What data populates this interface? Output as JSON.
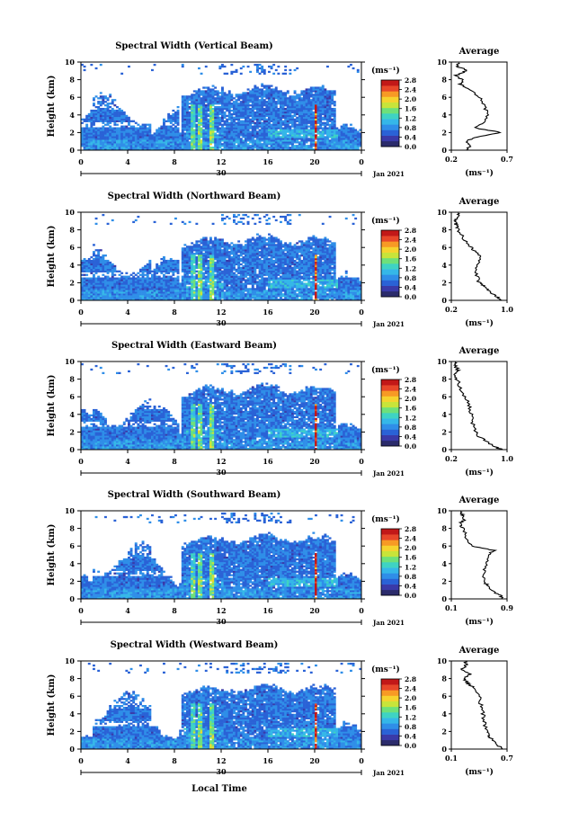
{
  "chart_data": [
    {
      "type": "heatmap",
      "title": "Spectral Width (Vertical Beam)",
      "ylabel": "Height (km)",
      "yticks": [
        "0",
        "2",
        "4",
        "6",
        "8",
        "10"
      ],
      "xticks": [
        "0",
        "4",
        "8",
        "12",
        "16",
        "20",
        "0"
      ],
      "ylim": [
        0,
        10
      ],
      "date_labels": {
        "day": "30",
        "month_year": "Jan 2021"
      },
      "colorbar": {
        "unit": "(ms⁻¹)",
        "ticks": [
          "0.0",
          "0.4",
          "0.8",
          "1.2",
          "1.6",
          "2.0",
          "2.4",
          "2.8"
        ],
        "range": [
          0,
          2.8
        ]
      },
      "profile": {
        "title": "Average",
        "unit": "(ms⁻¹)",
        "xticks": [
          "0.2",
          "0.7"
        ],
        "xlim": [
          0.2,
          0.7
        ],
        "heights": [
          0,
          0.5,
          1,
          1.5,
          2,
          2.5,
          3,
          4,
          5,
          6,
          7,
          7.5,
          8,
          8.5,
          9,
          9.5
        ],
        "values": [
          0.33,
          0.38,
          0.33,
          0.43,
          0.65,
          0.42,
          0.48,
          0.52,
          0.5,
          0.46,
          0.36,
          0.28,
          0.3,
          0.24,
          0.34,
          0.26
        ]
      }
    },
    {
      "type": "heatmap",
      "title": "Spectral Width (Northward Beam)",
      "ylabel": "Height (km)",
      "yticks": [
        "0",
        "2",
        "4",
        "6",
        "8",
        "10"
      ],
      "xticks": [
        "0",
        "4",
        "8",
        "12",
        "16",
        "20",
        "0"
      ],
      "ylim": [
        0,
        10
      ],
      "date_labels": {
        "day": "30",
        "month_year": "Jan 2021"
      },
      "colorbar": {
        "unit": "(ms⁻¹)",
        "ticks": [
          "0.0",
          "0.4",
          "0.8",
          "1.2",
          "1.6",
          "2.0",
          "2.4",
          "2.8"
        ],
        "range": [
          0,
          2.8
        ]
      },
      "profile": {
        "title": "Average",
        "unit": "(ms⁻¹)",
        "xticks": [
          "0.2",
          "1.0"
        ],
        "xlim": [
          0.2,
          1.0
        ],
        "heights": [
          0,
          0.5,
          1,
          1.5,
          2,
          3,
          4,
          5,
          5.5,
          6,
          7,
          8,
          8.5,
          9,
          9.5
        ],
        "values": [
          0.92,
          0.85,
          0.74,
          0.68,
          0.6,
          0.56,
          0.58,
          0.62,
          0.55,
          0.48,
          0.38,
          0.3,
          0.27,
          0.24,
          0.3
        ]
      }
    },
    {
      "type": "heatmap",
      "title": "Spectral Width (Eastward Beam)",
      "ylabel": "Height (km)",
      "yticks": [
        "0",
        "2",
        "4",
        "6",
        "8",
        "10"
      ],
      "xticks": [
        "0",
        "4",
        "8",
        "12",
        "16",
        "20",
        "0"
      ],
      "ylim": [
        0,
        10
      ],
      "date_labels": {
        "day": "30",
        "month_year": "Jan 2021"
      },
      "colorbar": {
        "unit": "(ms⁻¹)",
        "ticks": [
          "0.0",
          "0.4",
          "0.8",
          "1.2",
          "1.6",
          "2.0",
          "2.4",
          "2.8"
        ],
        "range": [
          0,
          2.8
        ]
      },
      "profile": {
        "title": "Average",
        "unit": "(ms⁻¹)",
        "xticks": [
          "0.2",
          "1.0"
        ],
        "xlim": [
          0.2,
          1.0
        ],
        "heights": [
          0,
          0.5,
          1,
          1.5,
          2,
          3,
          4,
          5,
          6,
          7,
          8,
          8.5,
          9,
          9.5
        ],
        "values": [
          0.92,
          0.8,
          0.68,
          0.6,
          0.55,
          0.5,
          0.48,
          0.46,
          0.4,
          0.33,
          0.28,
          0.25,
          0.3,
          0.26
        ]
      }
    },
    {
      "type": "heatmap",
      "title": "Spectral Width (Southward Beam)",
      "ylabel": "Height (km)",
      "yticks": [
        "0",
        "2",
        "4",
        "6",
        "8",
        "10"
      ],
      "xticks": [
        "0",
        "4",
        "8",
        "12",
        "16",
        "20",
        "0"
      ],
      "ylim": [
        0,
        10
      ],
      "date_labels": {
        "day": "30",
        "month_year": "Jan 2021"
      },
      "colorbar": {
        "unit": "(ms⁻¹)",
        "ticks": [
          "0.0",
          "0.4",
          "0.8",
          "1.2",
          "1.6",
          "2.0",
          "2.4",
          "2.8"
        ],
        "range": [
          0,
          2.8
        ]
      },
      "profile": {
        "title": "Average",
        "unit": "(ms⁻¹)",
        "xticks": [
          "0.1",
          "0.9"
        ],
        "xlim": [
          0.1,
          0.9
        ],
        "heights": [
          0,
          0.5,
          1,
          1.5,
          2,
          3,
          4,
          5,
          5.5,
          6,
          7,
          8,
          8.5,
          9,
          9.5
        ],
        "values": [
          0.85,
          0.78,
          0.68,
          0.62,
          0.58,
          0.56,
          0.6,
          0.62,
          0.72,
          0.4,
          0.32,
          0.28,
          0.22,
          0.3,
          0.25
        ]
      }
    },
    {
      "type": "heatmap",
      "title": "Spectral Width (Westward Beam)",
      "ylabel": "Height (km)",
      "yticks": [
        "0",
        "2",
        "4",
        "6",
        "8",
        "10"
      ],
      "xticks": [
        "0",
        "4",
        "8",
        "12",
        "16",
        "20",
        "0"
      ],
      "ylim": [
        0,
        10
      ],
      "date_labels": {
        "day": "30",
        "month_year": "Jan 2021"
      },
      "colorbar": {
        "unit": "(ms⁻¹)",
        "ticks": [
          "0.0",
          "0.4",
          "0.8",
          "1.2",
          "1.6",
          "2.0",
          "2.4",
          "2.8"
        ],
        "range": [
          0,
          2.8
        ]
      },
      "profile": {
        "title": "Average",
        "unit": "(ms⁻¹)",
        "xticks": [
          "0.1",
          "0.7"
        ],
        "xlim": [
          0.1,
          0.7
        ],
        "heights": [
          0,
          0.5,
          1,
          1.5,
          2,
          3,
          4,
          5,
          6,
          7,
          7.5,
          8,
          8.5,
          9,
          9.5
        ],
        "values": [
          0.64,
          0.6,
          0.55,
          0.5,
          0.48,
          0.46,
          0.44,
          0.42,
          0.4,
          0.34,
          0.28,
          0.22,
          0.3,
          0.2,
          0.26
        ]
      }
    }
  ],
  "footer": {
    "xlabel": "Local Time"
  },
  "colors": {
    "colormap": [
      "#2b2b6b",
      "#3a3aa8",
      "#2a62d6",
      "#2f8ee8",
      "#35b7e8",
      "#3fd3c3",
      "#6ee07a",
      "#c8e43a",
      "#f6d32e",
      "#f79a25",
      "#e8472a",
      "#c21818"
    ],
    "profile_line": "#000000"
  }
}
